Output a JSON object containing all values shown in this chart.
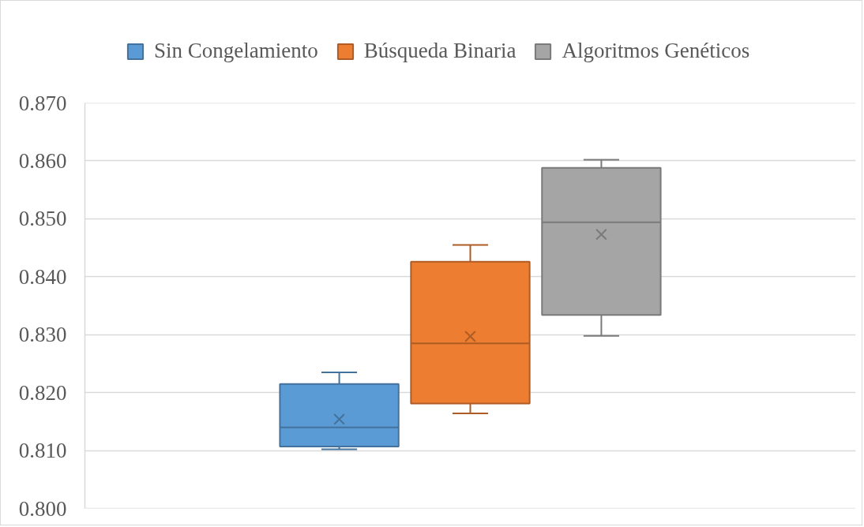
{
  "chart_data": {
    "type": "box",
    "categories": [
      null
    ],
    "series": [
      {
        "name": "Sin Congelamiento",
        "color": "#5b9bd5",
        "boxes": [
          {
            "low": 0.8102,
            "q1": 0.8107,
            "median": 0.814,
            "q3": 0.8215,
            "high": 0.8235,
            "mean": 0.8154
          }
        ]
      },
      {
        "name": "Búsqueda Binaria",
        "color": "#ed7d31",
        "boxes": [
          {
            "low": 0.8164,
            "q1": 0.8181,
            "median": 0.8285,
            "q3": 0.8426,
            "high": 0.8455,
            "mean": 0.8297
          }
        ]
      },
      {
        "name": "Algoritmos Genéticos",
        "color": "#a5a5a5",
        "boxes": [
          {
            "low": 0.8298,
            "q1": 0.8334,
            "median": 0.8494,
            "q3": 0.8588,
            "high": 0.8602,
            "mean": 0.8473
          }
        ]
      }
    ],
    "ylim": [
      0.8,
      0.87
    ],
    "yticks": [
      {
        "value": 0.8,
        "label": "0.800"
      },
      {
        "value": 0.81,
        "label": "0.810"
      },
      {
        "value": 0.82,
        "label": "0.820"
      },
      {
        "value": 0.83,
        "label": "0.830"
      },
      {
        "value": 0.84,
        "label": "0.840"
      },
      {
        "value": 0.85,
        "label": "0.850"
      },
      {
        "value": 0.86,
        "label": "0.860"
      },
      {
        "value": 0.87,
        "label": "0.870"
      }
    ],
    "grid": "y",
    "legend": "top",
    "marker": "cross",
    "tick_labels": "y"
  }
}
